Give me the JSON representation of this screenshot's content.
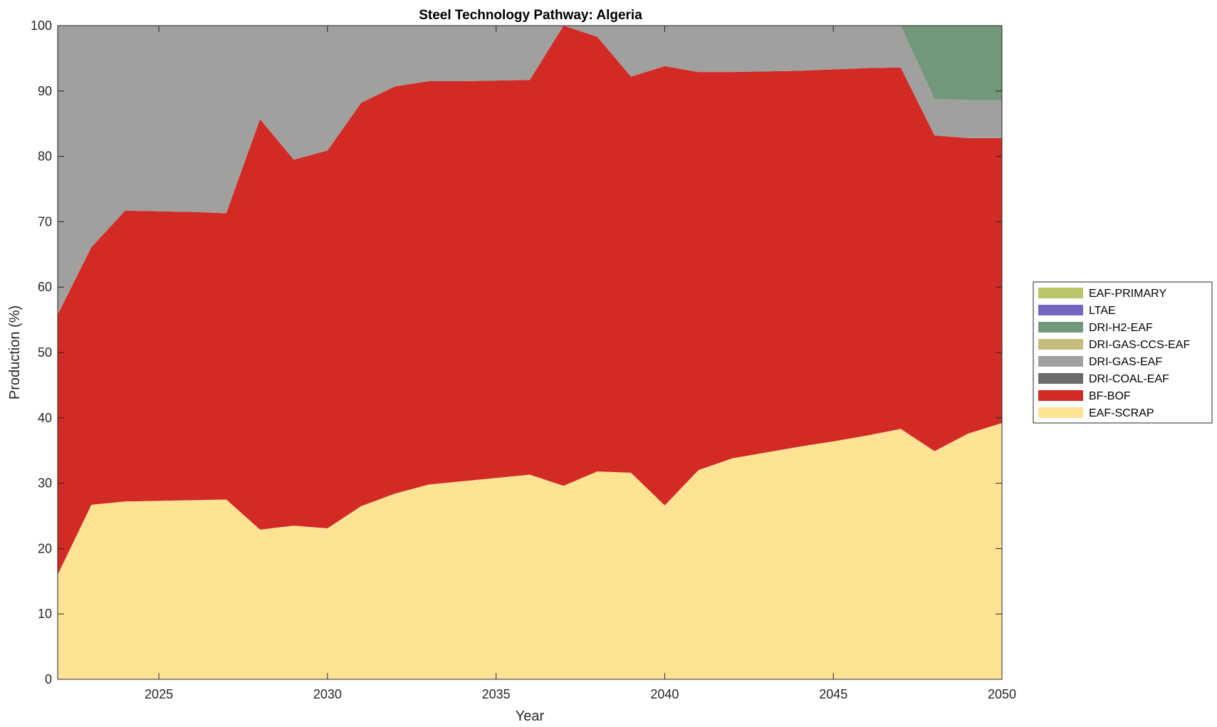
{
  "chart_data": {
    "type": "area",
    "stacked": true,
    "title": "Steel Technology Pathway: Algeria",
    "xlabel": "Year",
    "ylabel": "Production (%)",
    "xlim": [
      2022,
      2050
    ],
    "ylim": [
      0,
      100
    ],
    "x_ticks": [
      "2025",
      "2030",
      "2035",
      "2040",
      "2045",
      "2050"
    ],
    "y_ticks": [
      "0",
      "10",
      "20",
      "30",
      "40",
      "50",
      "60",
      "70",
      "80",
      "90",
      "100"
    ],
    "grid": false,
    "legend_position": "outside-right",
    "x": [
      2022,
      2023,
      2024,
      2025,
      2026,
      2027,
      2028,
      2029,
      2030,
      2031,
      2032,
      2033,
      2034,
      2035,
      2036,
      2037,
      2038,
      2039,
      2040,
      2041,
      2042,
      2043,
      2044,
      2045,
      2046,
      2047,
      2048,
      2049,
      2050
    ],
    "series": [
      {
        "name": "EAF-SCRAP",
        "color": "#FFE395",
        "values": [
          16,
          26.7,
          27.2,
          27.3,
          27.4,
          27.5,
          22.9,
          23.5,
          23.1,
          26.5,
          28.4,
          29.8,
          30.3,
          30.8,
          31.3,
          29.6,
          31.8,
          31.6,
          26.6,
          32.0,
          33.8,
          34.7,
          35.6,
          36.4,
          37.3,
          38.3,
          34.9,
          37.6,
          39.2
        ]
      },
      {
        "name": "BF-BOF",
        "color": "#D22B25",
        "values": [
          39.8,
          39.4,
          44.5,
          44.3,
          44.1,
          43.8,
          62.8,
          56.0,
          57.8,
          61.7,
          62.3,
          61.7,
          61.2,
          60.8,
          60.4,
          70.4,
          66.5,
          60.6,
          67.2,
          60.9,
          59.1,
          58.3,
          57.5,
          56.9,
          56.2,
          55.3,
          48.3,
          45.2,
          43.6
        ]
      },
      {
        "name": "DRI-COAL-EAF",
        "color": "#6B6B6B",
        "values": [
          0,
          0,
          0,
          0,
          0,
          0,
          0,
          0,
          0,
          0,
          0,
          0,
          0,
          0,
          0,
          0,
          0,
          0,
          0,
          0,
          0,
          0,
          0,
          0,
          0,
          0,
          0,
          0,
          0
        ]
      },
      {
        "name": "DRI-GAS-EAF",
        "color": "#A0A09E",
        "values": [
          44.2,
          33.9,
          28.3,
          28.4,
          28.5,
          28.7,
          14.3,
          20.5,
          19.1,
          11.8,
          9.3,
          8.5,
          8.5,
          8.4,
          8.3,
          0,
          1.7,
          7.8,
          6.2,
          7.1,
          7.1,
          7.0,
          6.9,
          6.7,
          6.5,
          6.4,
          5.6,
          5.8,
          5.8
        ]
      },
      {
        "name": "DRI-GAS-CCS-EAF",
        "color": "#C4BC7D",
        "values": [
          0,
          0,
          0,
          0,
          0,
          0,
          0,
          0,
          0,
          0,
          0,
          0,
          0,
          0,
          0,
          0,
          0,
          0,
          0,
          0,
          0,
          0,
          0,
          0,
          0,
          0,
          0,
          0,
          0
        ]
      },
      {
        "name": "DRI-H2-EAF",
        "color": "#73977A",
        "values": [
          0,
          0,
          0,
          0,
          0,
          0,
          0,
          0,
          0,
          0,
          0,
          0,
          0,
          0,
          0,
          0,
          0,
          0,
          0,
          0,
          0,
          0,
          0,
          0,
          0,
          0,
          11.2,
          11.4,
          11.4
        ]
      },
      {
        "name": "LTAE",
        "color": "#7466BF",
        "values": [
          0,
          0,
          0,
          0,
          0,
          0,
          0,
          0,
          0,
          0,
          0,
          0,
          0,
          0,
          0,
          0,
          0,
          0,
          0,
          0,
          0,
          0,
          0,
          0,
          0,
          0,
          0,
          0,
          0
        ]
      },
      {
        "name": "EAF-PRIMARY",
        "color": "#BBC466",
        "values": [
          0,
          0,
          0,
          0,
          0,
          0,
          0,
          0,
          0,
          0,
          0,
          0,
          0,
          0,
          0,
          0,
          0,
          0,
          0,
          0,
          0,
          0,
          0,
          0,
          0,
          0,
          0,
          0,
          0
        ]
      }
    ],
    "legend_order": [
      "EAF-PRIMARY",
      "LTAE",
      "DRI-H2-EAF",
      "DRI-GAS-CCS-EAF",
      "DRI-GAS-EAF",
      "DRI-COAL-EAF",
      "BF-BOF",
      "EAF-SCRAP"
    ]
  }
}
